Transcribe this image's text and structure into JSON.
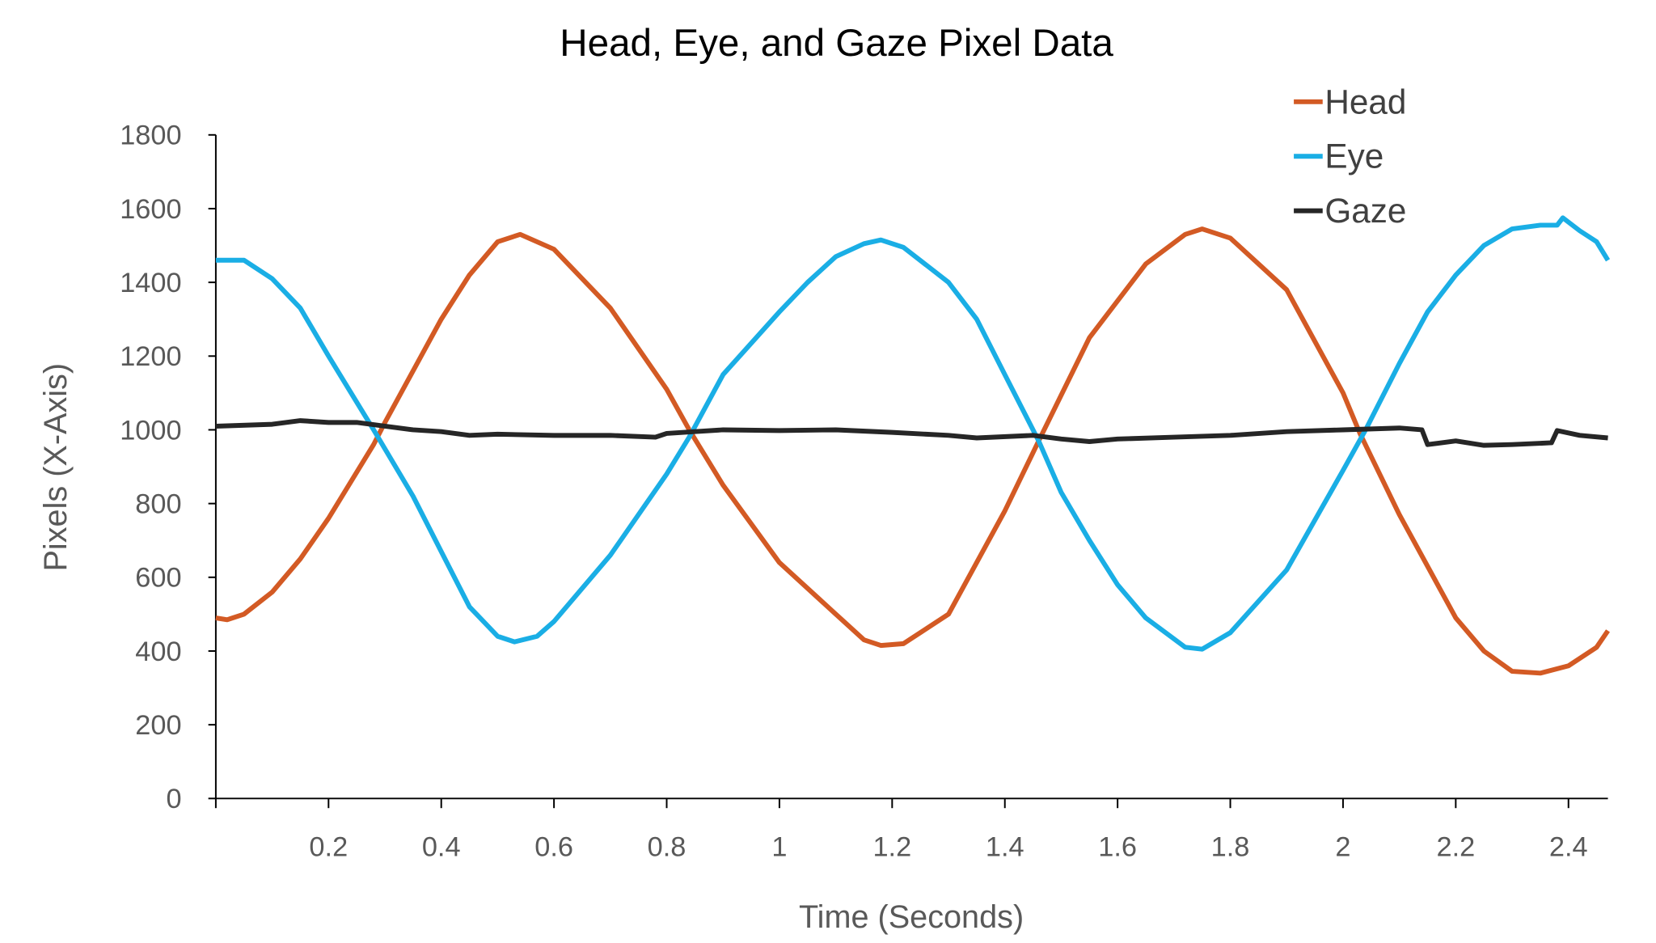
{
  "chart_data": {
    "type": "line",
    "title": "Head, Eye, and Gaze Pixel Data",
    "xlabel": "Time (Seconds)",
    "ylabel": "Pixels (X-Axis)",
    "xlim": [
      0,
      2.47
    ],
    "ylim": [
      0,
      1800
    ],
    "xticks": [
      0.2,
      0.4,
      0.6,
      0.8,
      1,
      1.2,
      1.4,
      1.6,
      1.8,
      2,
      2.2,
      2.4
    ],
    "xtick_labels": [
      "0.2",
      "0.4",
      "0.6",
      "0.8",
      "1",
      "1.2",
      "1.4",
      "1.6",
      "1.8",
      "2",
      "2.2",
      "2.4"
    ],
    "yticks": [
      0,
      200,
      400,
      600,
      800,
      1000,
      1200,
      1400,
      1600,
      1800
    ],
    "ytick_labels": [
      "0",
      "200",
      "400",
      "600",
      "800",
      "1000",
      "1200",
      "1400",
      "1600",
      "1800"
    ],
    "grid": false,
    "legend": "top-right",
    "series": [
      {
        "name": "Head",
        "color": "#d35a24",
        "x": [
          0,
          0.02,
          0.05,
          0.1,
          0.15,
          0.2,
          0.28,
          0.3,
          0.4,
          0.45,
          0.5,
          0.54,
          0.6,
          0.7,
          0.8,
          0.84,
          0.9,
          1.0,
          1.1,
          1.15,
          1.18,
          1.22,
          1.3,
          1.4,
          1.46,
          1.55,
          1.65,
          1.72,
          1.75,
          1.8,
          1.9,
          2.0,
          2.03,
          2.1,
          2.2,
          2.25,
          2.3,
          2.35,
          2.4,
          2.45,
          2.47
        ],
        "y": [
          490,
          485,
          500,
          560,
          650,
          760,
          960,
          1020,
          1300,
          1420,
          1510,
          1530,
          1490,
          1330,
          1110,
          1000,
          850,
          640,
          500,
          430,
          415,
          420,
          500,
          780,
          970,
          1250,
          1450,
          1530,
          1545,
          1520,
          1380,
          1100,
          990,
          770,
          490,
          400,
          345,
          340,
          360,
          410,
          455
        ]
      },
      {
        "name": "Eye",
        "color": "#1aaee5",
        "x": [
          0,
          0.05,
          0.1,
          0.15,
          0.2,
          0.28,
          0.35,
          0.4,
          0.45,
          0.5,
          0.53,
          0.57,
          0.6,
          0.7,
          0.8,
          0.84,
          0.9,
          1.0,
          1.05,
          1.1,
          1.15,
          1.18,
          1.22,
          1.3,
          1.35,
          1.4,
          1.46,
          1.5,
          1.55,
          1.6,
          1.65,
          1.72,
          1.75,
          1.8,
          1.9,
          2.0,
          2.04,
          2.1,
          2.15,
          2.2,
          2.25,
          2.3,
          2.35,
          2.38,
          2.39,
          2.42,
          2.45,
          2.47
        ],
        "y": [
          1460,
          1460,
          1410,
          1330,
          1200,
          1000,
          820,
          670,
          520,
          440,
          425,
          440,
          480,
          660,
          880,
          980,
          1150,
          1320,
          1400,
          1470,
          1505,
          1515,
          1495,
          1400,
          1300,
          1150,
          970,
          830,
          700,
          580,
          490,
          410,
          405,
          450,
          620,
          890,
          1000,
          1180,
          1320,
          1420,
          1500,
          1545,
          1555,
          1555,
          1575,
          1540,
          1510,
          1460
        ]
      },
      {
        "name": "Gaze",
        "color": "#262626",
        "x": [
          0,
          0.1,
          0.15,
          0.2,
          0.25,
          0.3,
          0.35,
          0.4,
          0.45,
          0.5,
          0.6,
          0.7,
          0.78,
          0.8,
          0.85,
          0.9,
          1.0,
          1.1,
          1.2,
          1.3,
          1.35,
          1.45,
          1.5,
          1.55,
          1.6,
          1.7,
          1.8,
          1.9,
          2.0,
          2.1,
          2.14,
          2.15,
          2.2,
          2.25,
          2.3,
          2.37,
          2.38,
          2.42,
          2.47
        ],
        "y": [
          1010,
          1015,
          1025,
          1020,
          1020,
          1010,
          1000,
          995,
          985,
          988,
          985,
          985,
          980,
          990,
          995,
          1000,
          998,
          1000,
          993,
          985,
          978,
          985,
          975,
          968,
          975,
          980,
          985,
          995,
          1000,
          1005,
          1000,
          960,
          970,
          958,
          960,
          965,
          998,
          985,
          978
        ]
      }
    ]
  }
}
